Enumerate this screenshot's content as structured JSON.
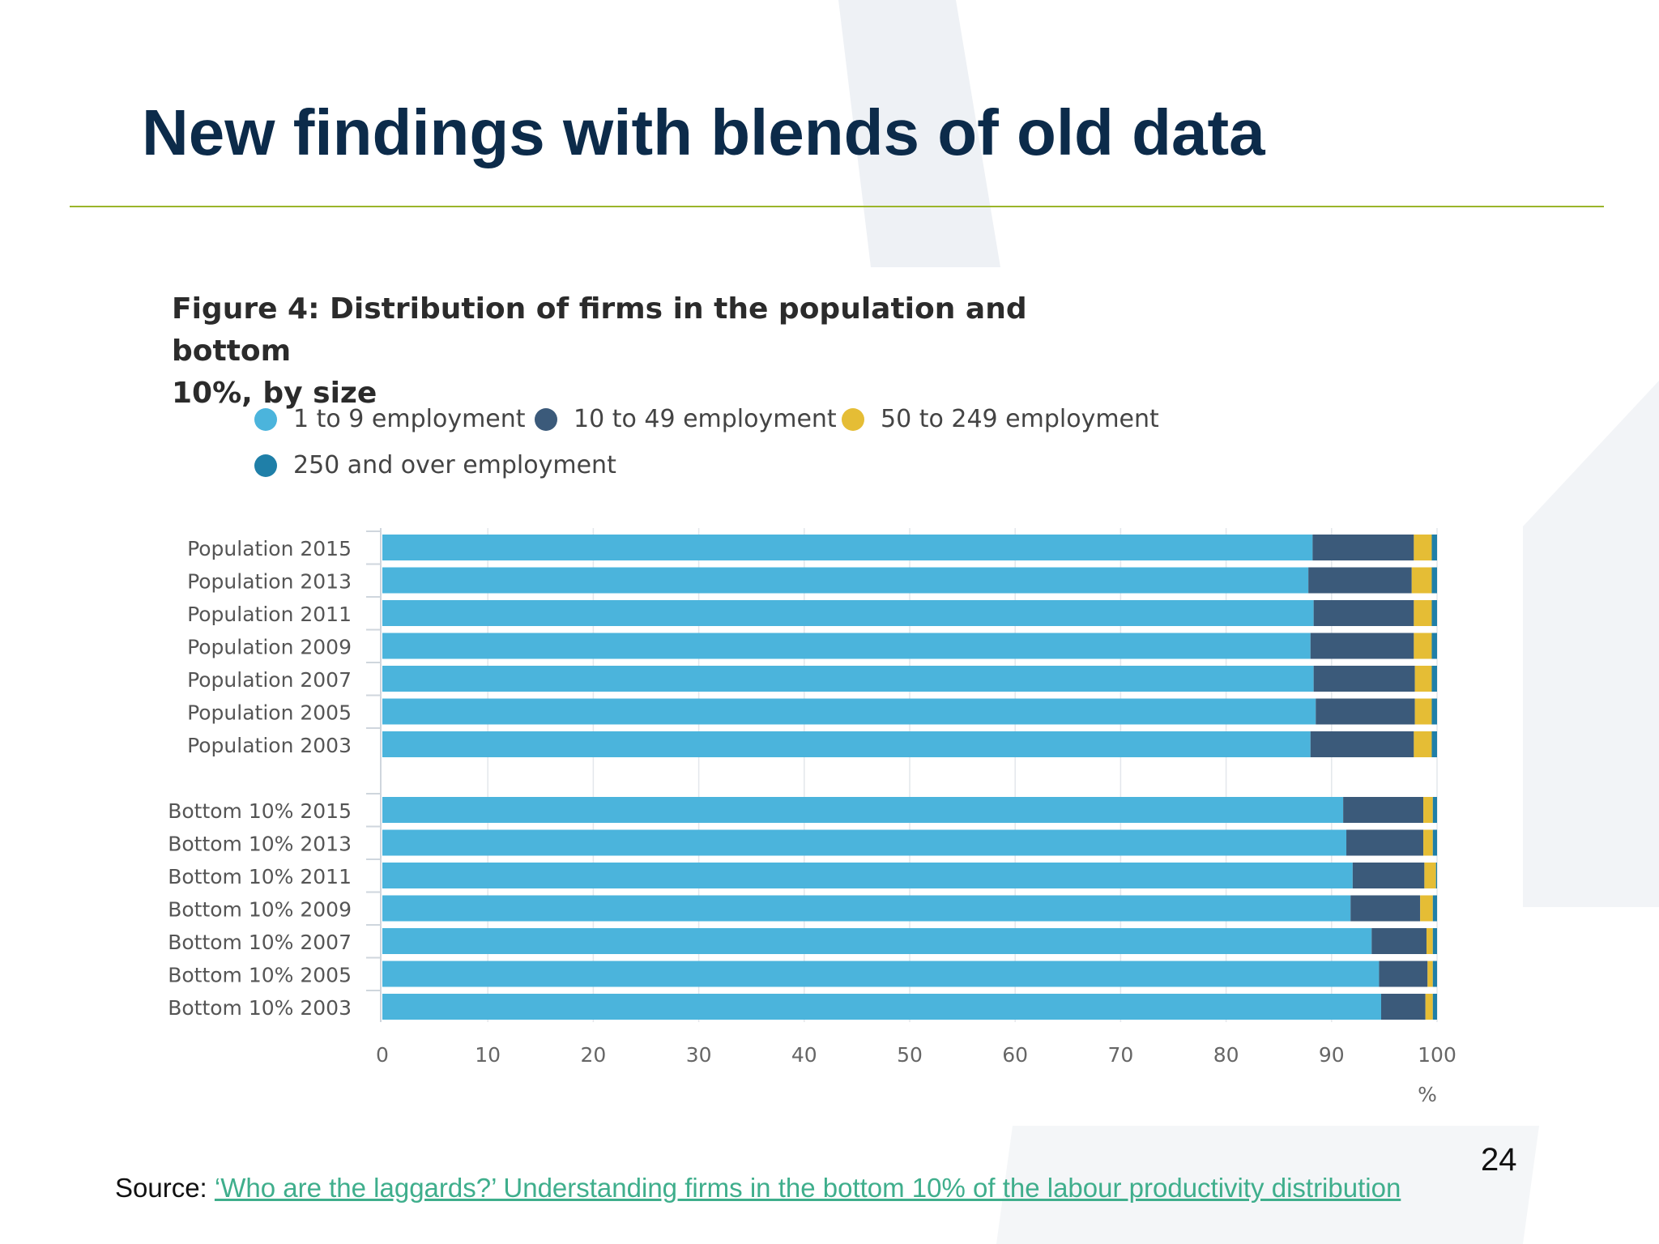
{
  "slide": {
    "title": "New findings with blends of old data",
    "page_number": "24",
    "source_prefix": "Source: ",
    "source_link_text": "‘Who are the laggards?’ Understanding firms in the bottom 10% of the labour productivity distribution"
  },
  "colors": {
    "title": "#0c2b4a",
    "rule": "#9bb52a",
    "link": "#3fae8c"
  },
  "chart_data": {
    "type": "bar",
    "orientation": "horizontal",
    "stacked": true,
    "title": "Figure 4: Distribution of firms in the population and bottom 10%, by size",
    "title_lines": [
      "Figure 4: Distribution of firms in the population and bottom",
      "10%, by size"
    ],
    "xlabel": "%",
    "ylabel": "",
    "xlim": [
      0,
      100
    ],
    "x_ticks": [
      0,
      10,
      20,
      30,
      40,
      50,
      60,
      70,
      80,
      90,
      100
    ],
    "grid": true,
    "legend_position": "top",
    "groups": [
      [
        "Population 2015",
        "Population 2013",
        "Population 2011",
        "Population 2009",
        "Population 2007",
        "Population 2005",
        "Population 2003"
      ],
      [
        "Bottom 10% 2015",
        "Bottom 10% 2013",
        "Bottom 10% 2011",
        "Bottom 10% 2009",
        "Bottom 10% 2007",
        "Bottom 10% 2005",
        "Bottom 10% 2003"
      ]
    ],
    "series": [
      {
        "name": "1 to 9 employment",
        "color": "#4bb4dc",
        "values": [
          88.2,
          87.8,
          88.3,
          88.0,
          88.3,
          88.5,
          88.0,
          91.1,
          91.4,
          92.0,
          91.8,
          93.8,
          94.5,
          94.7
        ]
      },
      {
        "name": "10 to 49 employment",
        "color": "#3b5a7a",
        "values": [
          9.6,
          9.8,
          9.5,
          9.8,
          9.6,
          9.4,
          9.8,
          7.6,
          7.3,
          6.8,
          6.6,
          5.2,
          4.6,
          4.2
        ]
      },
      {
        "name": "50 to 249 employment",
        "color": "#e5bd35",
        "values": [
          1.7,
          1.9,
          1.7,
          1.7,
          1.6,
          1.6,
          1.7,
          0.9,
          0.9,
          1.1,
          1.2,
          0.6,
          0.5,
          0.7
        ]
      },
      {
        "name": "250 and over employment",
        "color": "#1f7fa8",
        "values": [
          0.5,
          0.5,
          0.5,
          0.5,
          0.5,
          0.5,
          0.5,
          0.4,
          0.4,
          0.1,
          0.4,
          0.4,
          0.4,
          0.4
        ]
      }
    ]
  }
}
